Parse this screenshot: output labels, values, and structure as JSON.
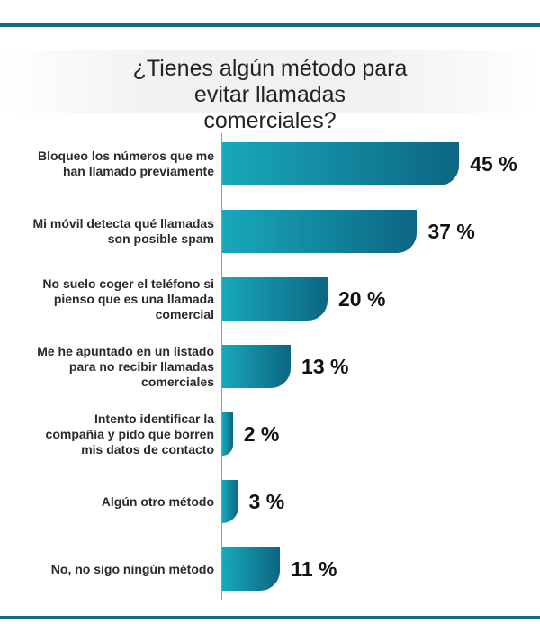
{
  "chart_data": {
    "type": "bar",
    "orientation": "horizontal",
    "title": "¿Tienes algún método para evitar llamadas comerciales?",
    "categories": [
      "Bloqueo los números que me han llamado previamente",
      "Mi móvil detecta qué llamadas son posible spam",
      "No suelo coger el teléfono si pienso que es una llamada comercial",
      "Me he apuntado en un listado para no recibir llamadas comerciales",
      "Intento identificar la compañía y pido que borren mis datos de contacto",
      "Algún otro método",
      "No, no sigo ningún método"
    ],
    "values": [
      45,
      37,
      20,
      13,
      2,
      3,
      11
    ],
    "value_labels": [
      "45 %",
      "37 %",
      "20 %",
      "13 %",
      "2 %",
      "3 %",
      "11 %"
    ],
    "color": [
      "#18a8ba",
      "#0c6683"
    ]
  }
}
